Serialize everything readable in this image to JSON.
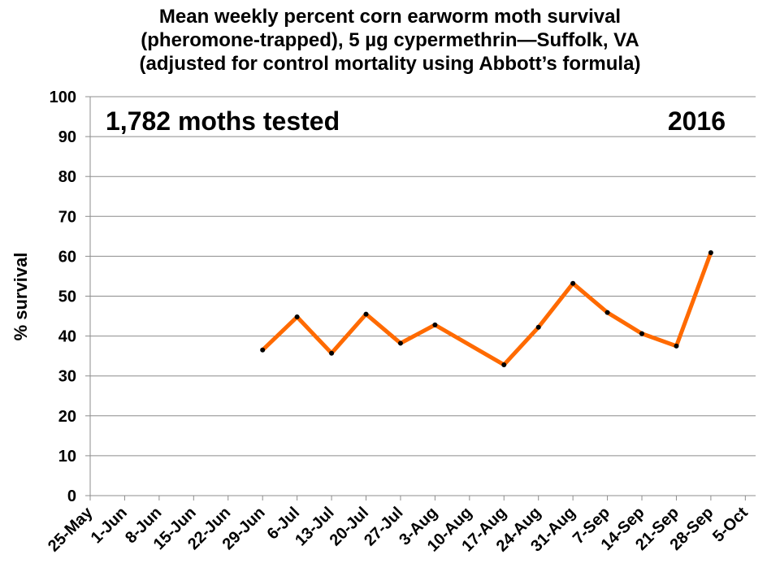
{
  "chart_data": {
    "type": "line",
    "title": [
      "Mean weekly percent corn earworm moth survival",
      "(pheromone-trapped), 5 µg cypermethrin—Suffolk, VA",
      "(adjusted for control mortality using Abbott’s formula)"
    ],
    "ylabel": "% survival",
    "xlabel": "",
    "ylim": [
      0,
      100
    ],
    "yticks": [
      0,
      10,
      20,
      30,
      40,
      50,
      60,
      70,
      80,
      90,
      100
    ],
    "grid": true,
    "categories": [
      "25-May",
      "1-Jun",
      "8-Jun",
      "15-Jun",
      "22-Jun",
      "29-Jun",
      "6-Jul",
      "13-Jul",
      "20-Jul",
      "27-Jul",
      "3-Aug",
      "10-Aug",
      "17-Aug",
      "24-Aug",
      "31-Aug",
      "7-Sep",
      "14-Sep",
      "21-Sep",
      "28-Sep",
      "5-Oct"
    ],
    "series": [
      {
        "color": "#FF6A00",
        "points": [
          {
            "x": "29-Jun",
            "y": 36.5
          },
          {
            "x": "6-Jul",
            "y": 44.8
          },
          {
            "x": "13-Jul",
            "y": 35.7
          },
          {
            "x": "20-Jul",
            "y": 45.5
          },
          {
            "x": "27-Jul",
            "y": 38.2
          },
          {
            "x": "3-Aug",
            "y": 42.8
          },
          {
            "x": "17-Aug",
            "y": 32.8
          },
          {
            "x": "24-Aug",
            "y": 42.2
          },
          {
            "x": "31-Aug",
            "y": 53.2
          },
          {
            "x": "7-Sep",
            "y": 45.9
          },
          {
            "x": "14-Sep",
            "y": 40.6
          },
          {
            "x": "21-Sep",
            "y": 37.5
          },
          {
            "x": "28-Sep",
            "y": 60.9
          }
        ]
      }
    ],
    "annotations": {
      "left": "1,782 moths tested",
      "right": "2016"
    }
  }
}
